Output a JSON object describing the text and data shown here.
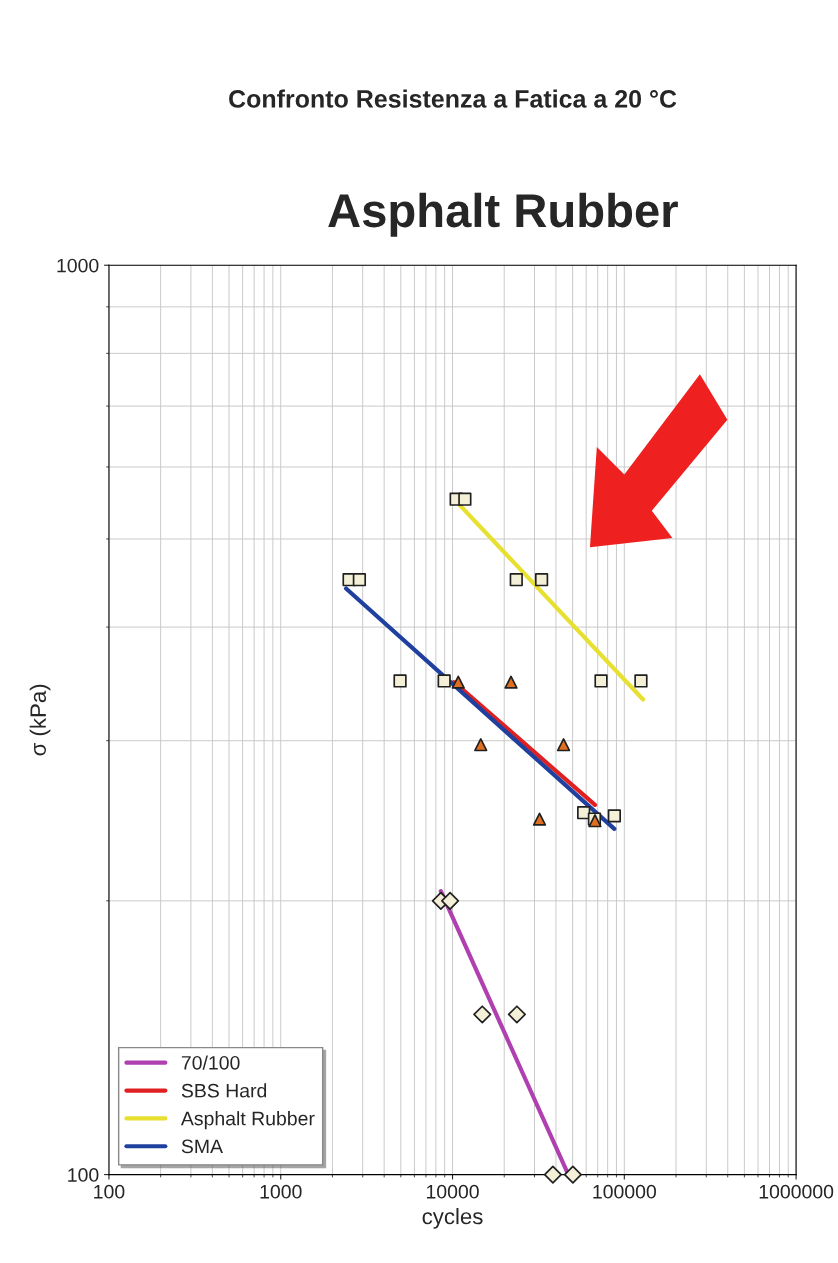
{
  "chart_data": {
    "type": "scatter",
    "title": "Confronto Resistenza a Fatica a 20 °C",
    "xlabel": "cycles",
    "ylabel": "σ (kPa)",
    "log": "xy",
    "xlim": [
      100,
      1000000
    ],
    "xticks": [
      100,
      1000,
      10000,
      100000,
      1000000
    ],
    "ylim": [
      100,
      1000
    ],
    "yticks": [
      100,
      1000
    ],
    "grid": true,
    "legend": "bottom left",
    "annotations": [
      "Asphalt Rubber"
    ],
    "series": [
      {
        "marker": "square",
        "color": "#f4f0d8",
        "x": [
          2500,
          2870,
          4950,
          8940,
          58000,
          67000,
          87500
        ],
        "values": [
          451,
          451,
          349,
          349,
          250,
          246,
          248
        ]
      },
      {
        "marker": "triangle",
        "color": "#e07020",
        "x": [
          10800,
          14600,
          21900,
          32100,
          44300,
          67500
        ],
        "values": [
          348,
          297,
          348,
          246,
          297,
          245
        ]
      },
      {
        "marker": "square",
        "color": "#f4f0d8",
        "x": [
          10500,
          11800,
          23500,
          33000,
          73200,
          125000
        ],
        "values": [
          553,
          553,
          451,
          451,
          349,
          349
        ]
      },
      {
        "marker": "diamond",
        "color": "#f4f0d8",
        "x": [
          8550,
          9680,
          14900,
          23700,
          38400,
          50200
        ],
        "values": [
          200,
          200,
          150,
          150,
          100,
          100
        ]
      },
      {
        "type": "line",
        "name": "70/100",
        "color": "#b040b0",
        "x": [
          8550,
          47200
        ],
        "values": [
          205,
          100
        ]
      },
      {
        "type": "line",
        "name": "SBS Hard",
        "color": "#e02020",
        "x": [
          10200,
          67500
        ],
        "values": [
          348,
          255
        ]
      },
      {
        "type": "line",
        "name": "Asphalt Rubber",
        "color": "#e8e030",
        "x": [
          10800,
          128600
        ],
        "values": [
          547,
          333
        ]
      },
      {
        "type": "line",
        "name": "SMA",
        "color": "#2040a0",
        "x": [
          2400,
          87500
        ],
        "values": [
          441,
          240
        ]
      }
    ]
  }
}
